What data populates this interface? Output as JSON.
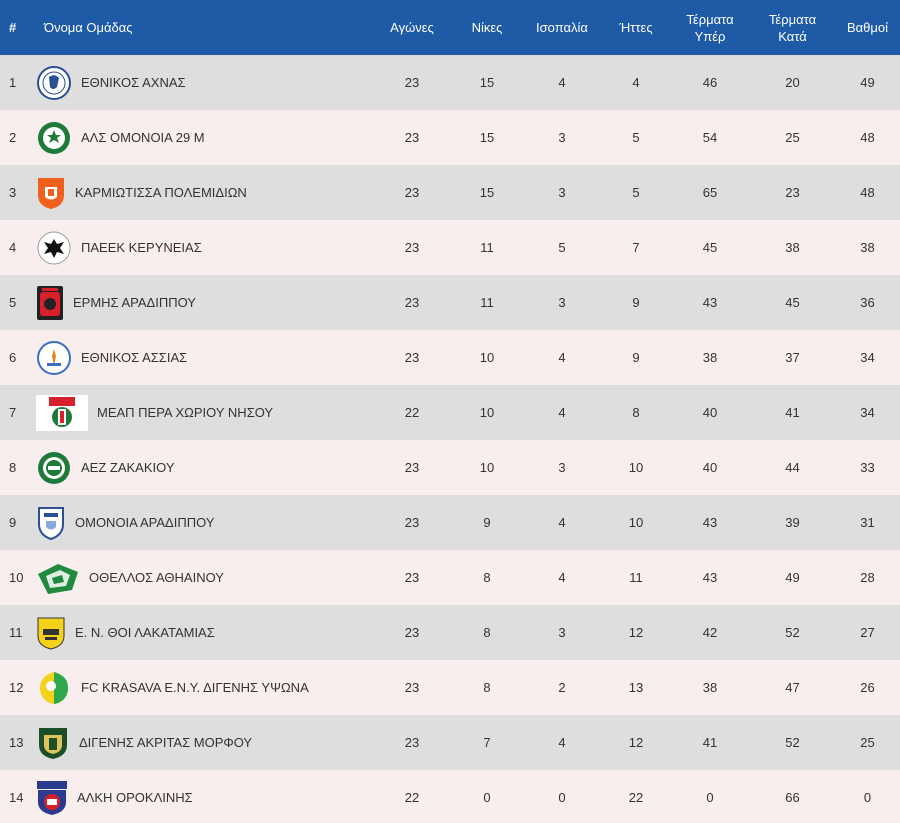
{
  "headers": {
    "pos": "#",
    "team": "Όνομα Ομάδας",
    "played": "Αγώνες",
    "wins": "Νίκες",
    "draws": "Ισοπαλία",
    "losses": "Ήττες",
    "gf_line1": "Τέρματα",
    "gf_line2": "Υπέρ",
    "ga_line1": "Τέρματα",
    "ga_line2": "Κατά",
    "points": "Βαθμοί"
  },
  "colors": {
    "header_bg": "#1f5aa6",
    "row_odd": "#dedede",
    "row_even": "#f8eeee"
  },
  "rows": [
    {
      "pos": "1",
      "team": "ΕΘΝΙΚΟΣ ΑΧΝΑΣ",
      "played": "23",
      "wins": "15",
      "draws": "4",
      "losses": "4",
      "gf": "46",
      "ga": "20",
      "points": "49",
      "logo": "ethnikos-achnas-logo-icon"
    },
    {
      "pos": "2",
      "team": "ΑΛΣ ΟΜΟΝΟΙΑ 29 Μ",
      "played": "23",
      "wins": "15",
      "draws": "3",
      "losses": "5",
      "gf": "54",
      "ga": "25",
      "points": "48",
      "logo": "als-omonoia-logo-icon"
    },
    {
      "pos": "3",
      "team": "ΚΑΡΜΙΩΤΙΣΣΑ ΠΟΛΕΜΙΔΙΩΝ",
      "played": "23",
      "wins": "15",
      "draws": "3",
      "losses": "5",
      "gf": "65",
      "ga": "23",
      "points": "48",
      "logo": "karmiotissa-logo-icon"
    },
    {
      "pos": "4",
      "team": "ΠΑΕΕΚ ΚΕΡΥΝΕΙΑΣ",
      "played": "23",
      "wins": "11",
      "draws": "5",
      "losses": "7",
      "gf": "45",
      "ga": "38",
      "points": "38",
      "logo": "paeek-logo-icon"
    },
    {
      "pos": "5",
      "team": "ΕΡΜΗΣ ΑΡΑΔΙΠΠΟΥ",
      "played": "23",
      "wins": "11",
      "draws": "3",
      "losses": "9",
      "gf": "43",
      "ga": "45",
      "points": "36",
      "logo": "ermis-logo-icon"
    },
    {
      "pos": "6",
      "team": "ΕΘΝΙΚΟΣ ΑΣΣΙΑΣ",
      "played": "23",
      "wins": "10",
      "draws": "4",
      "losses": "9",
      "gf": "38",
      "ga": "37",
      "points": "34",
      "logo": "ethnikos-assias-logo-icon"
    },
    {
      "pos": "7",
      "team": "ΜΕΑΠ ΠΕΡΑ ΧΩΡΙΟΥ ΝΗΣΟΥ",
      "played": "22",
      "wins": "10",
      "draws": "4",
      "losses": "8",
      "gf": "40",
      "ga": "41",
      "points": "34",
      "logo": "meap-logo-icon"
    },
    {
      "pos": "8",
      "team": "ΑΕΖ ΖΑΚΑΚΙΟΥ",
      "played": "23",
      "wins": "10",
      "draws": "3",
      "losses": "10",
      "gf": "40",
      "ga": "44",
      "points": "33",
      "logo": "aez-logo-icon"
    },
    {
      "pos": "9",
      "team": "ΟΜΟΝΟΙΑ ΑΡΑΔΙΠΠΟΥ",
      "played": "23",
      "wins": "9",
      "draws": "4",
      "losses": "10",
      "gf": "43",
      "ga": "39",
      "points": "31",
      "logo": "omonoia-aradippou-logo-icon"
    },
    {
      "pos": "10",
      "team": "ΟΘΕΛΛΟΣ ΑΘΗΑΙΝΟΥ",
      "played": "23",
      "wins": "8",
      "draws": "4",
      "losses": "11",
      "gf": "43",
      "ga": "49",
      "points": "28",
      "logo": "othellos-logo-icon"
    },
    {
      "pos": "11",
      "team": "Ε. Ν. ΘΟΙ ΛΑΚΑΤΑΜΙΑΣ",
      "played": "23",
      "wins": "8",
      "draws": "3",
      "losses": "12",
      "gf": "42",
      "ga": "52",
      "points": "27",
      "logo": "thoi-logo-icon"
    },
    {
      "pos": "12",
      "team": "FC KRASAVA Ε.Ν.Υ. ΔΙΓΕΝΗΣ ΥΨΩΝΑ",
      "played": "23",
      "wins": "8",
      "draws": "2",
      "losses": "13",
      "gf": "38",
      "ga": "47",
      "points": "26",
      "logo": "krasava-logo-icon"
    },
    {
      "pos": "13",
      "team": "ΔΙΓΕΝΗΣ ΑΚΡΙΤΑΣ ΜΟΡΦΟΥ",
      "played": "23",
      "wins": "7",
      "draws": "4",
      "losses": "12",
      "gf": "41",
      "ga": "52",
      "points": "25",
      "logo": "digenis-morfou-logo-icon"
    },
    {
      "pos": "14",
      "team": "ΑΛΚΗ ΟΡΟΚΛΙΝΗΣ",
      "played": "22",
      "wins": "0",
      "draws": "0",
      "losses": "22",
      "gf": "0",
      "ga": "66",
      "points": "0",
      "logo": "alki-logo-icon"
    }
  ]
}
